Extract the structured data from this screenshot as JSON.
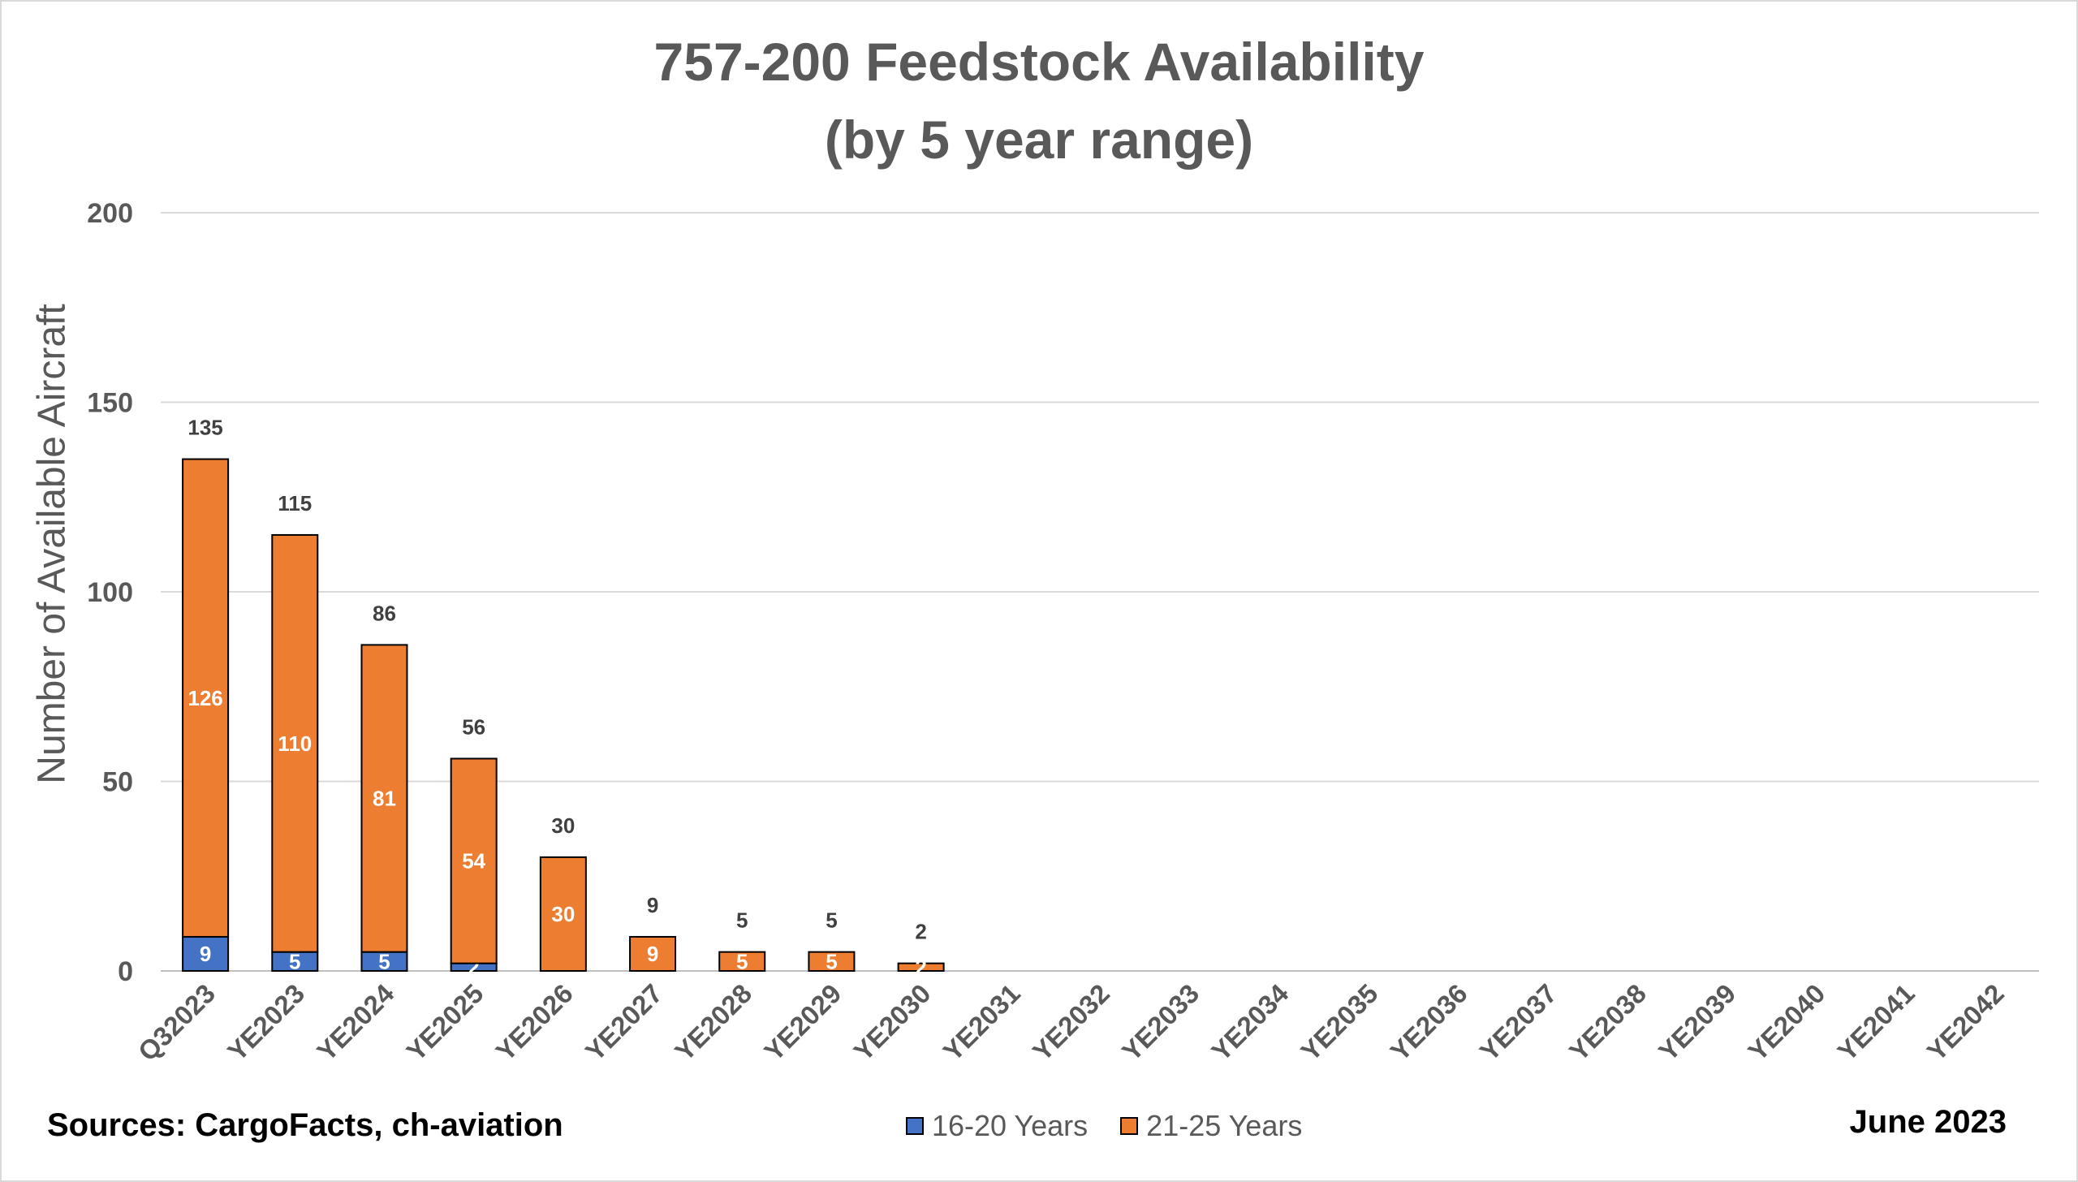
{
  "chart_data": {
    "type": "bar",
    "stacked": true,
    "title": "757-200 Feedstock Availability",
    "subtitle": "(by 5 year range)",
    "ylabel": "Number of Available Aircraft",
    "xlabel": "",
    "ylim": [
      0,
      200
    ],
    "yticks": [
      0,
      50,
      100,
      150,
      200
    ],
    "grid": true,
    "legend_position": "bottom",
    "categories": [
      "Q32023",
      "YE2023",
      "YE2024",
      "YE2025",
      "YE2026",
      "YE2027",
      "YE2028",
      "YE2029",
      "YE2030",
      "YE2031",
      "YE2032",
      "YE2033",
      "YE2034",
      "YE2035",
      "YE2036",
      "YE2037",
      "YE2038",
      "YE2039",
      "YE2040",
      "YE2041",
      "YE2042"
    ],
    "series": [
      {
        "name": "16-20 Years",
        "color": "#4472C4",
        "values": [
          9,
          5,
          5,
          2,
          0,
          0,
          0,
          0,
          0,
          0,
          0,
          0,
          0,
          0,
          0,
          0,
          0,
          0,
          0,
          0,
          0
        ]
      },
      {
        "name": "21-25 Years",
        "color": "#ED7D31",
        "values": [
          126,
          110,
          81,
          54,
          30,
          9,
          5,
          5,
          2,
          0,
          0,
          0,
          0,
          0,
          0,
          0,
          0,
          0,
          0,
          0,
          0
        ]
      }
    ],
    "totals": [
      135,
      115,
      86,
      56,
      30,
      9,
      5,
      5,
      2,
      0,
      0,
      0,
      0,
      0,
      0,
      0,
      0,
      0,
      0,
      0,
      0
    ]
  },
  "footer": {
    "sources": "Sources: CargoFacts, ch-aviation",
    "date": "June 2023"
  }
}
